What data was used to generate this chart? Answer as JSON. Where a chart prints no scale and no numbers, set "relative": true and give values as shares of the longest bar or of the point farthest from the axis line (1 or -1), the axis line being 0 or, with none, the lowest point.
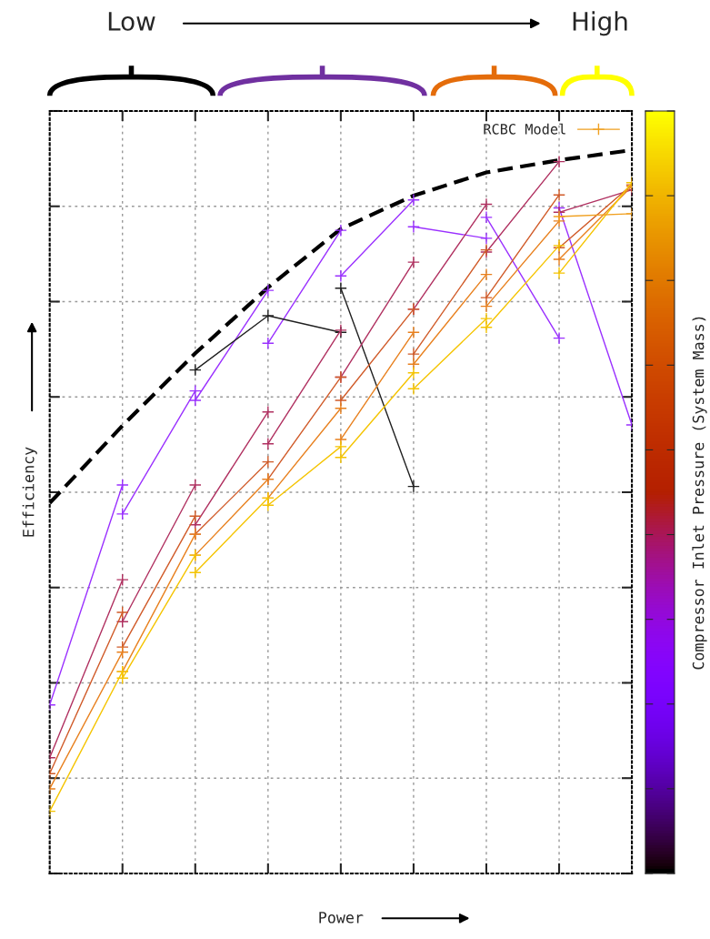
{
  "chart_data": {
    "type": "line",
    "relative": true,
    "xlabel": "Power",
    "ylabel": "Efficiency",
    "clabel": "Compressor Inlet Pressure (System Mass)",
    "annotations": [
      "Low",
      "High"
    ],
    "categories": [
      null,
      null,
      null,
      null,
      null,
      null,
      null,
      null,
      null
    ],
    "tick_labels": false,
    "grid": true,
    "legend": "top right",
    "marker": "cross",
    "series": [
      {
        "color": "#000000",
        "line_style": "dashed",
        "marker": "none",
        "values": [
          0.512,
          0.619,
          0.719,
          0.81,
          0.891,
          0.937,
          0.969,
          0.986,
          1.0
        ]
      },
      {
        "color": "#9a30ff",
        "values": [
          0.233,
          0.537,
          null,
          null,
          null,
          null,
          null,
          null,
          null
        ]
      },
      {
        "color": "#9a30ff",
        "values": [
          null,
          0.497,
          0.667,
          null,
          null,
          null,
          null,
          null,
          null
        ]
      },
      {
        "color": "#9a30ff",
        "values": [
          null,
          null,
          0.654,
          0.806,
          null,
          null,
          null,
          null,
          null
        ]
      },
      {
        "color": "#9a30ff",
        "values": [
          null,
          null,
          null,
          0.733,
          0.889,
          null,
          null,
          null,
          null
        ]
      },
      {
        "color": "#9a30ff",
        "values": [
          null,
          null,
          null,
          null,
          0.826,
          0.931,
          null,
          null,
          null
        ]
      },
      {
        "color": "#9a30ff",
        "values": [
          null,
          null,
          null,
          null,
          null,
          0.894,
          0.878,
          null,
          null
        ]
      },
      {
        "color": "#9a30ff",
        "values": [
          null,
          null,
          null,
          null,
          null,
          null,
          0.907,
          0.74,
          null
        ]
      },
      {
        "color": "#9a30ff",
        "values": [
          null,
          null,
          null,
          null,
          null,
          null,
          null,
          0.92,
          0.62
        ]
      },
      {
        "color": "#202020",
        "values": [
          null,
          null,
          0.696,
          0.771,
          0.748,
          null,
          null,
          null,
          null
        ]
      },
      {
        "color": "#202020",
        "values": [
          null,
          null,
          null,
          null,
          0.809,
          0.535,
          null,
          null,
          null
        ]
      },
      {
        "color": "#b03060",
        "values": [
          0.16,
          0.406,
          null,
          null,
          null,
          null,
          null,
          null,
          null
        ]
      },
      {
        "color": "#b03060",
        "values": [
          null,
          0.348,
          0.537,
          null,
          null,
          null,
          null,
          null,
          null
        ]
      },
      {
        "color": "#b03060",
        "values": [
          null,
          null,
          0.482,
          0.638,
          null,
          null,
          null,
          null,
          null
        ]
      },
      {
        "color": "#b03060",
        "values": [
          null,
          null,
          null,
          0.594,
          0.751,
          null,
          null,
          null,
          null
        ]
      },
      {
        "color": "#b03060",
        "values": [
          null,
          null,
          null,
          null,
          0.686,
          0.845,
          null,
          null,
          null
        ]
      },
      {
        "color": "#b03060",
        "values": [
          null,
          null,
          null,
          null,
          null,
          0.78,
          0.925,
          null,
          null
        ]
      },
      {
        "color": "#b03060",
        "values": [
          null,
          null,
          null,
          null,
          null,
          null,
          0.859,
          0.984,
          null
        ]
      },
      {
        "color": "#b03060",
        "values": [
          null,
          null,
          null,
          null,
          null,
          null,
          null,
          0.914,
          0.945
        ]
      },
      {
        "color": "#d05a28",
        "values": [
          0.138,
          0.361,
          null,
          null,
          null,
          null,
          null,
          null,
          null
        ]
      },
      {
        "color": "#d05a28",
        "values": [
          null,
          0.313,
          0.494,
          null,
          null,
          null,
          null,
          null,
          null
        ]
      },
      {
        "color": "#d05a28",
        "values": [
          null,
          null,
          0.469,
          0.569,
          null,
          null,
          null,
          null,
          null
        ]
      },
      {
        "color": "#d05a28",
        "values": [
          null,
          null,
          null,
          0.545,
          0.686,
          null,
          null,
          null,
          null
        ]
      },
      {
        "color": "#d05a28",
        "values": [
          null,
          null,
          null,
          null,
          0.654,
          0.78,
          null,
          null,
          null
        ]
      },
      {
        "color": "#d05a28",
        "values": [
          null,
          null,
          null,
          null,
          null,
          0.718,
          0.862,
          null,
          null
        ]
      },
      {
        "color": "#d05a28",
        "values": [
          null,
          null,
          null,
          null,
          null,
          null,
          0.796,
          0.938,
          null
        ]
      },
      {
        "color": "#d05a28",
        "values": [
          null,
          null,
          null,
          null,
          null,
          null,
          null,
          0.865,
          0.952
        ]
      },
      {
        "color": "#e8801e",
        "values": [
          0.117,
          0.306,
          null,
          null,
          null,
          null,
          null,
          null,
          null
        ]
      },
      {
        "color": "#e8801e",
        "values": [
          null,
          0.279,
          0.469,
          null,
          null,
          null,
          null,
          null,
          null
        ]
      },
      {
        "color": "#e8801e",
        "values": [
          null,
          null,
          0.44,
          0.545,
          null,
          null,
          null,
          null,
          null
        ]
      },
      {
        "color": "#e8801e",
        "values": [
          null,
          null,
          null,
          0.519,
          0.643,
          null,
          null,
          null,
          null
        ]
      },
      {
        "color": "#e8801e",
        "values": [
          null,
          null,
          null,
          null,
          0.6,
          0.748,
          null,
          null,
          null
        ]
      },
      {
        "color": "#e8801e",
        "values": [
          null,
          null,
          null,
          null,
          null,
          0.704,
          0.828,
          null,
          null
        ]
      },
      {
        "color": "#e8801e",
        "values": [
          null,
          null,
          null,
          null,
          null,
          null,
          0.784,
          0.902,
          null
        ]
      },
      {
        "color": "#e8801e",
        "values": [
          null,
          null,
          null,
          null,
          null,
          null,
          null,
          0.849,
          0.95
        ]
      },
      {
        "color": "#f5c400",
        "values": [
          0.086,
          0.279,
          null,
          null,
          null,
          null,
          null,
          null,
          null
        ]
      },
      {
        "color": "#f5c400",
        "values": [
          null,
          0.27,
          0.44,
          null,
          null,
          null,
          null,
          null,
          null
        ]
      },
      {
        "color": "#f5c400",
        "values": [
          null,
          null,
          0.416,
          0.519,
          null,
          null,
          null,
          null,
          null
        ]
      },
      {
        "color": "#f5c400",
        "values": [
          null,
          null,
          null,
          0.509,
          0.59,
          null,
          null,
          null,
          null
        ]
      },
      {
        "color": "#f5c400",
        "values": [
          null,
          null,
          null,
          null,
          0.575,
          0.692,
          null,
          null,
          null
        ]
      },
      {
        "color": "#f5c400",
        "values": [
          null,
          null,
          null,
          null,
          null,
          0.67,
          0.767,
          null,
          null
        ]
      },
      {
        "color": "#f5c400",
        "values": [
          null,
          null,
          null,
          null,
          null,
          null,
          0.755,
          0.868,
          null
        ]
      },
      {
        "color": "#f5c400",
        "values": [
          null,
          null,
          null,
          null,
          null,
          null,
          null,
          0.83,
          0.955
        ]
      },
      {
        "name": "RCBC Model",
        "color": "#f0a020",
        "values": [
          null,
          null,
          null,
          null,
          null,
          null,
          null,
          0.908,
          0.912
        ]
      }
    ]
  }
}
